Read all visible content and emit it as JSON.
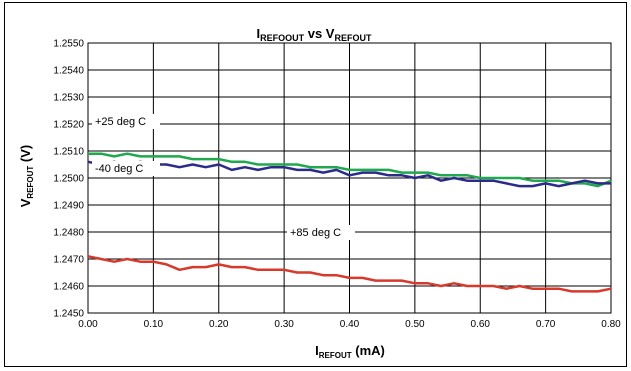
{
  "chart_data": {
    "type": "line",
    "title": {
      "main": "I",
      "main_sub": "REFOOUT",
      "mid": " vs V",
      "mid_sub": "REFOUT"
    },
    "xlabel": {
      "main": "I",
      "sub": "REFOUT",
      "unit": " (mA)"
    },
    "ylabel": {
      "main": "V",
      "sub": "REFOUT",
      "unit": " (V)"
    },
    "xlim": [
      0,
      0.8
    ],
    "ylim": [
      1.245,
      1.255
    ],
    "x_ticks": [
      "0.00",
      "0.10",
      "0.20",
      "0.30",
      "0.40",
      "0.50",
      "0.60",
      "0.70",
      "0.80"
    ],
    "y_ticks": [
      "1.2450",
      "1.2460",
      "1.2470",
      "1.2480",
      "1.2490",
      "1.2500",
      "1.2510",
      "1.2520",
      "1.2530",
      "1.2540",
      "1.2550"
    ],
    "grid": true,
    "annotations": [
      "+25 deg C",
      "-40 deg C",
      "+85 deg C"
    ],
    "series": [
      {
        "color": "#1fa84c",
        "x": [
          0.0,
          0.02,
          0.04,
          0.06,
          0.08,
          0.1,
          0.12,
          0.14,
          0.16,
          0.18,
          0.2,
          0.22,
          0.24,
          0.26,
          0.28,
          0.3,
          0.32,
          0.34,
          0.36,
          0.38,
          0.4,
          0.42,
          0.44,
          0.46,
          0.48,
          0.5,
          0.52,
          0.54,
          0.56,
          0.58,
          0.6,
          0.62,
          0.64,
          0.66,
          0.68,
          0.7,
          0.72,
          0.74,
          0.76,
          0.78,
          0.8
        ],
        "values": [
          1.2509,
          1.2509,
          1.2508,
          1.2509,
          1.2508,
          1.2508,
          1.2508,
          1.2508,
          1.2507,
          1.2507,
          1.2507,
          1.2506,
          1.2506,
          1.2505,
          1.2505,
          1.2505,
          1.2505,
          1.2504,
          1.2504,
          1.2504,
          1.2503,
          1.2503,
          1.2503,
          1.2503,
          1.2502,
          1.2502,
          1.2502,
          1.2501,
          1.2501,
          1.2501,
          1.25,
          1.25,
          1.25,
          1.25,
          1.2499,
          1.2499,
          1.2499,
          1.2498,
          1.2498,
          1.2497,
          1.2499
        ]
      },
      {
        "color": "#2b2c8a",
        "x": [
          0.0,
          0.02,
          0.04,
          0.06,
          0.08,
          0.1,
          0.12,
          0.14,
          0.16,
          0.18,
          0.2,
          0.22,
          0.24,
          0.26,
          0.28,
          0.3,
          0.32,
          0.34,
          0.36,
          0.38,
          0.4,
          0.42,
          0.44,
          0.46,
          0.48,
          0.5,
          0.52,
          0.54,
          0.56,
          0.58,
          0.6,
          0.62,
          0.64,
          0.66,
          0.68,
          0.7,
          0.72,
          0.74,
          0.76,
          0.78,
          0.8
        ],
        "values": [
          1.2506,
          1.2505,
          1.2506,
          1.2505,
          1.2506,
          1.2505,
          1.2505,
          1.2504,
          1.2505,
          1.2504,
          1.2505,
          1.2503,
          1.2504,
          1.2503,
          1.2504,
          1.2504,
          1.2503,
          1.2503,
          1.2502,
          1.2503,
          1.2501,
          1.2502,
          1.2502,
          1.2501,
          1.2501,
          1.25,
          1.2501,
          1.2499,
          1.25,
          1.2499,
          1.2499,
          1.2499,
          1.2498,
          1.2497,
          1.2497,
          1.2498,
          1.2497,
          1.2498,
          1.2499,
          1.2498,
          1.2498
        ]
      },
      {
        "color": "#d7392a",
        "x": [
          0.0,
          0.02,
          0.04,
          0.06,
          0.08,
          0.1,
          0.12,
          0.14,
          0.16,
          0.18,
          0.2,
          0.22,
          0.24,
          0.26,
          0.28,
          0.3,
          0.32,
          0.34,
          0.36,
          0.38,
          0.4,
          0.42,
          0.44,
          0.46,
          0.48,
          0.5,
          0.52,
          0.54,
          0.56,
          0.58,
          0.6,
          0.62,
          0.64,
          0.66,
          0.68,
          0.7,
          0.72,
          0.74,
          0.76,
          0.78,
          0.8
        ],
        "values": [
          1.2471,
          1.247,
          1.2469,
          1.247,
          1.2469,
          1.2469,
          1.2468,
          1.2466,
          1.2467,
          1.2467,
          1.2468,
          1.2467,
          1.2467,
          1.2466,
          1.2466,
          1.2466,
          1.2465,
          1.2465,
          1.2464,
          1.2464,
          1.2463,
          1.2463,
          1.2462,
          1.2462,
          1.2462,
          1.2461,
          1.2461,
          1.246,
          1.2461,
          1.246,
          1.246,
          1.246,
          1.2459,
          1.246,
          1.2459,
          1.2459,
          1.2459,
          1.2458,
          1.2458,
          1.2458,
          1.2459
        ]
      }
    ]
  }
}
